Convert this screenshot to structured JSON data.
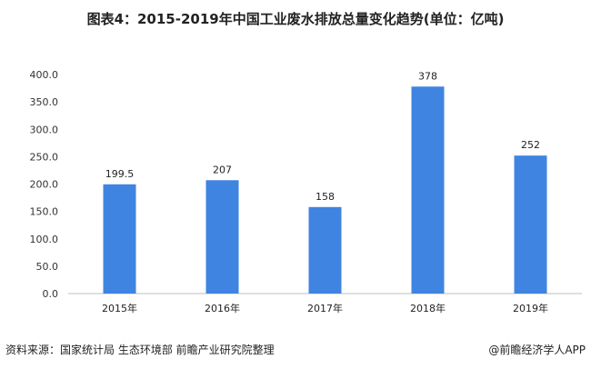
{
  "chart_data": {
    "type": "bar",
    "title": "图表4：2015-2019年中国工业废水排放总量变化趋势(单位：亿吨)",
    "categories": [
      "2015年",
      "2016年",
      "2017年",
      "2018年",
      "2019年"
    ],
    "values": [
      199.5,
      207,
      158,
      378,
      252
    ],
    "data_labels": [
      "199.5",
      "207",
      "158",
      "378",
      "252"
    ],
    "ylim": [
      0,
      400
    ],
    "yticks": [
      "0.0",
      "50.0",
      "100.0",
      "150.0",
      "200.0",
      "250.0",
      "300.0",
      "350.0",
      "400.0"
    ],
    "grid": false,
    "bar_color": "#3f84e0"
  },
  "footer": {
    "source": "资料来源：国家统计局 生态环境部 前瞻产业研究院整理",
    "credit": "@前瞻经济学人APP"
  }
}
